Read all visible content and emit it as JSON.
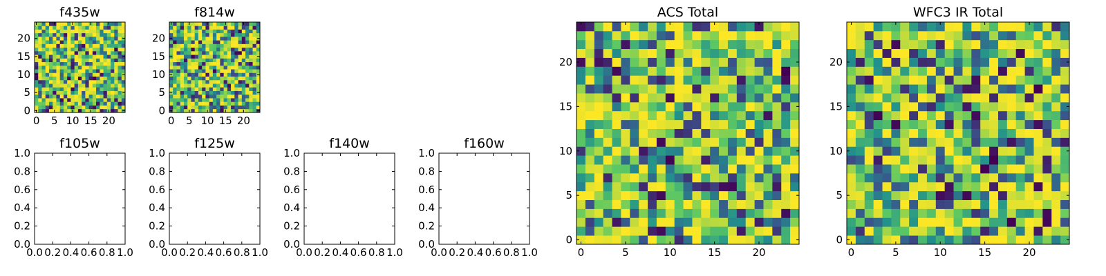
{
  "chart_data": [
    {
      "type": "heatmap",
      "title": "f435w",
      "grid_size": [
        25,
        25
      ],
      "xlim": [
        -0.5,
        24.5
      ],
      "ylim": [
        -0.5,
        24.5
      ],
      "xticks": [
        0,
        5,
        10,
        15,
        20
      ],
      "yticks": [
        0,
        5,
        10,
        15,
        20
      ],
      "colormap": "viridis",
      "values": "25x25 grid of random noise values (0-1), generated in script",
      "grid": false
    },
    {
      "type": "heatmap",
      "title": "f814w",
      "grid_size": [
        25,
        25
      ],
      "xlim": [
        -0.5,
        24.5
      ],
      "ylim": [
        -0.5,
        24.5
      ],
      "xticks": [
        0,
        5,
        10,
        15,
        20
      ],
      "yticks": [
        0,
        5,
        10,
        15,
        20
      ],
      "colormap": "viridis",
      "grid": false
    },
    {
      "type": "line",
      "title": "f105w",
      "xlim": [
        0.0,
        1.0
      ],
      "ylim": [
        0.0,
        1.0
      ],
      "xticks": [
        "0.0",
        "0.2",
        "0.4",
        "0.6",
        "0.8",
        "1.0"
      ],
      "yticks": [
        "0.0",
        "0.2",
        "0.4",
        "0.6",
        "0.8",
        "1.0"
      ],
      "series": []
    },
    {
      "type": "line",
      "title": "f125w",
      "xlim": [
        0.0,
        1.0
      ],
      "ylim": [
        0.0,
        1.0
      ],
      "xticks": [
        "0.0",
        "0.2",
        "0.4",
        "0.6",
        "0.8",
        "1.0"
      ],
      "yticks": [
        "0.0",
        "0.2",
        "0.4",
        "0.6",
        "0.8",
        "1.0"
      ],
      "series": []
    },
    {
      "type": "line",
      "title": "f140w",
      "xlim": [
        0.0,
        1.0
      ],
      "ylim": [
        0.0,
        1.0
      ],
      "xticks": [
        "0.0",
        "0.2",
        "0.4",
        "0.6",
        "0.8",
        "1.0"
      ],
      "yticks": [
        "0.0",
        "0.2",
        "0.4",
        "0.6",
        "0.8",
        "1.0"
      ],
      "series": []
    },
    {
      "type": "line",
      "title": "f160w",
      "xlim": [
        0.0,
        1.0
      ],
      "ylim": [
        0.0,
        1.0
      ],
      "xticks": [
        "0.0",
        "0.2",
        "0.4",
        "0.6",
        "0.8",
        "1.0"
      ],
      "yticks": [
        "0.0",
        "0.2",
        "0.4",
        "0.6",
        "0.8",
        "1.0"
      ],
      "series": []
    },
    {
      "type": "heatmap",
      "title": "ACS Total",
      "grid_size": [
        25,
        25
      ],
      "xlim": [
        -0.5,
        24.5
      ],
      "ylim": [
        -0.5,
        24.5
      ],
      "xticks": [
        0,
        5,
        10,
        15,
        20
      ],
      "yticks": [
        0,
        5,
        10,
        15,
        20
      ],
      "colormap": "viridis",
      "grid": false
    },
    {
      "type": "heatmap",
      "title": "WFC3 IR Total",
      "grid_size": [
        25,
        25
      ],
      "xlim": [
        -0.5,
        24.5
      ],
      "ylim": [
        -0.5,
        24.5
      ],
      "xticks": [
        0,
        5,
        10,
        15,
        20
      ],
      "yticks": [
        0,
        5,
        10,
        15,
        20
      ],
      "colormap": "viridis",
      "grid": false
    }
  ],
  "colors": {
    "background": "#ffffff",
    "axes": "#000000",
    "viridis": [
      "#440154",
      "#3b528b",
      "#21918c",
      "#5ec962",
      "#fde725"
    ]
  }
}
